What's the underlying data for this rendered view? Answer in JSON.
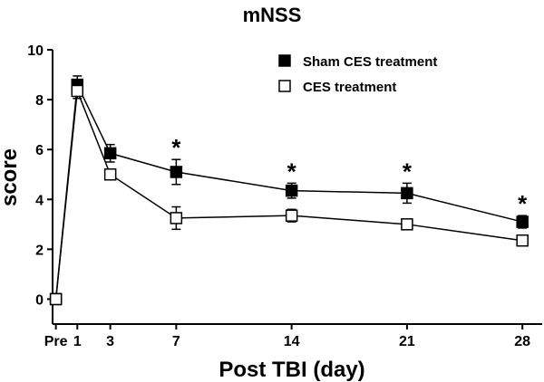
{
  "chart_data": {
    "type": "line",
    "title": "mNSS",
    "xlabel": "Post TBI (day)",
    "ylabel": "score",
    "categories": [
      "Pre",
      "1",
      "3",
      "7",
      "14",
      "21",
      "28"
    ],
    "x": [
      -0.3,
      1,
      3,
      7,
      14,
      21,
      28
    ],
    "xlim": [
      -0.5,
      29.2
    ],
    "ylim": [
      -1,
      10
    ],
    "yticks": [
      0,
      2,
      4,
      6,
      8,
      10
    ],
    "grid": false,
    "legend_position": "top-right",
    "series": [
      {
        "name": "Sham CES treatment",
        "marker": "filled-square",
        "values": [
          0,
          8.6,
          5.85,
          5.1,
          4.35,
          4.25,
          3.1
        ],
        "errors": [
          0,
          0.35,
          0.35,
          0.5,
          0.3,
          0.4,
          0.25
        ]
      },
      {
        "name": "CES treatment",
        "marker": "open-square",
        "values": [
          0,
          8.35,
          5.0,
          3.25,
          3.35,
          3.0,
          2.35
        ],
        "errors": [
          0,
          0.3,
          0.15,
          0.45,
          0.25,
          0.15,
          0.15
        ]
      }
    ],
    "annotations": [
      {
        "x": 7,
        "text": "*"
      },
      {
        "x": 14,
        "text": "*"
      },
      {
        "x": 21,
        "text": "*"
      },
      {
        "x": 28,
        "text": "*"
      }
    ]
  }
}
